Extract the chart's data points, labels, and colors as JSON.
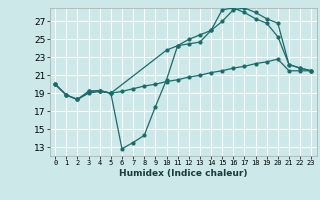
{
  "xlabel": "Humidex (Indice chaleur)",
  "bg_color": "#cce8e8",
  "grid_color": "#ffffff",
  "line_color": "#1a6b6b",
  "xlim": [
    -0.5,
    23.5
  ],
  "ylim": [
    12.0,
    28.5
  ],
  "xticks": [
    0,
    1,
    2,
    3,
    4,
    5,
    6,
    7,
    8,
    9,
    10,
    11,
    12,
    13,
    14,
    15,
    16,
    17,
    18,
    19,
    20,
    21,
    22,
    23
  ],
  "yticks": [
    13,
    15,
    17,
    19,
    21,
    23,
    25,
    27
  ],
  "line1_x": [
    0,
    1,
    2,
    3,
    4,
    5,
    6,
    7,
    8,
    9,
    10,
    11,
    12,
    13,
    14,
    15,
    16,
    17,
    18,
    19,
    20,
    21,
    22,
    23
  ],
  "line1_y": [
    20.0,
    18.8,
    18.3,
    19.2,
    19.3,
    19.0,
    12.8,
    13.5,
    14.3,
    17.5,
    20.5,
    24.3,
    24.5,
    24.7,
    26.0,
    28.3,
    28.5,
    28.0,
    27.3,
    26.8,
    25.3,
    22.2,
    21.8,
    21.5
  ],
  "line2_x": [
    0,
    1,
    2,
    3,
    4,
    5,
    10,
    11,
    12,
    13,
    14,
    15,
    16,
    17,
    18,
    19,
    20,
    21,
    22,
    23
  ],
  "line2_y": [
    20.0,
    18.8,
    18.3,
    19.2,
    19.3,
    19.0,
    23.8,
    24.3,
    25.0,
    25.5,
    26.0,
    27.0,
    28.3,
    28.5,
    28.0,
    27.3,
    26.8,
    22.2,
    21.8,
    21.5
  ],
  "line3_x": [
    0,
    1,
    2,
    3,
    4,
    5,
    6,
    7,
    8,
    9,
    10,
    11,
    12,
    13,
    14,
    15,
    16,
    17,
    18,
    19,
    20,
    21,
    22,
    23
  ],
  "line3_y": [
    20.0,
    18.8,
    18.3,
    19.0,
    19.2,
    19.0,
    19.2,
    19.5,
    19.8,
    20.0,
    20.3,
    20.5,
    20.8,
    21.0,
    21.3,
    21.5,
    21.8,
    22.0,
    22.3,
    22.5,
    22.8,
    21.5,
    21.5,
    21.5
  ]
}
